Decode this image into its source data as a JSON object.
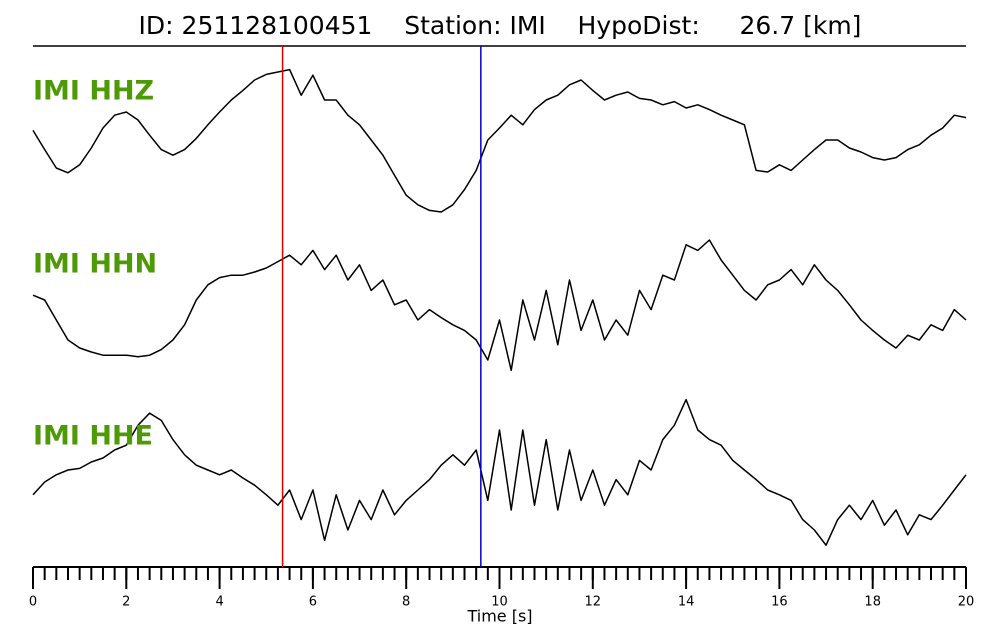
{
  "chart_data": {
    "type": "line",
    "title": "ID: 251128100451    Station: IMI    HypoDist:     26.7 [km]",
    "xlabel": "Time [s]",
    "xlim": [
      0,
      20
    ],
    "xticks": [
      0,
      2,
      4,
      6,
      8,
      10,
      12,
      14,
      16,
      18,
      20
    ],
    "xminorticks": [
      0,
      0.25,
      0.5,
      0.75,
      1,
      1.25,
      1.5,
      1.75,
      2,
      2.25,
      2.5,
      2.75,
      3,
      3.25,
      3.5,
      3.75,
      4,
      4.25,
      4.5,
      4.75,
      5,
      5.25,
      5.5,
      5.75,
      6,
      6.25,
      6.5,
      6.75,
      7,
      7.25,
      7.5,
      7.75,
      8,
      8.25,
      8.5,
      8.75,
      9,
      9.25,
      9.5,
      9.75,
      10,
      10.25,
      10.5,
      10.75,
      11,
      11.25,
      11.5,
      11.75,
      12,
      12.25,
      12.5,
      12.75,
      13,
      13.25,
      13.5,
      13.75,
      14,
      14.25,
      14.5,
      14.75,
      15,
      15.25,
      15.5,
      15.75,
      16,
      16.25,
      16.5,
      16.75,
      17,
      17.25,
      17.5,
      17.75,
      18,
      18.25,
      18.5,
      18.75,
      19,
      19.25,
      19.5,
      19.75,
      20
    ],
    "ylim": [
      -1,
      1
    ],
    "x": [
      0,
      0.25,
      0.5,
      0.75,
      1,
      1.25,
      1.5,
      1.75,
      2,
      2.25,
      2.5,
      2.75,
      3,
      3.25,
      3.5,
      3.75,
      4,
      4.25,
      4.5,
      4.75,
      5,
      5.25,
      5.5,
      5.75,
      6,
      6.25,
      6.5,
      6.75,
      7,
      7.25,
      7.5,
      7.75,
      8,
      8.25,
      8.5,
      8.75,
      9,
      9.25,
      9.5,
      9.75,
      10,
      10.25,
      10.5,
      10.75,
      11,
      11.25,
      11.5,
      11.75,
      12,
      12.25,
      12.5,
      12.75,
      13,
      13.25,
      13.5,
      13.75,
      14,
      14.25,
      14.5,
      14.75,
      15,
      15.25,
      15.5,
      15.75,
      16,
      16.25,
      16.5,
      16.75,
      17,
      17.25,
      17.5,
      17.75,
      18,
      18.25,
      18.5,
      18.75,
      19,
      19.25,
      19.5,
      19.75,
      20
    ],
    "series": [
      {
        "name": "IMI HHZ",
        "color": "#000000",
        "values": [
          0.12,
          -0.12,
          -0.35,
          -0.41,
          -0.31,
          -0.1,
          0.15,
          0.31,
          0.35,
          0.25,
          0.06,
          -0.12,
          -0.19,
          -0.12,
          0.02,
          0.19,
          0.35,
          0.5,
          0.62,
          0.75,
          0.82,
          0.85,
          0.88,
          0.56,
          0.81,
          0.5,
          0.5,
          0.31,
          0.19,
          0,
          -0.19,
          -0.44,
          -0.69,
          -0.81,
          -0.88,
          -0.9,
          -0.81,
          -0.62,
          -0.38,
          0,
          0.15,
          0.31,
          0.19,
          0.38,
          0.5,
          0.56,
          0.69,
          0.75,
          0.62,
          0.5,
          0.56,
          0.6,
          0.52,
          0.5,
          0.44,
          0.48,
          0.4,
          0.44,
          0.38,
          0.31,
          0.25,
          0.19,
          -0.38,
          -0.4,
          -0.31,
          -0.38,
          -0.25,
          -0.12,
          0,
          0,
          -0.1,
          -0.15,
          -0.22,
          -0.25,
          -0.22,
          -0.12,
          -0.06,
          0.06,
          0.15,
          0.31,
          0.28
        ]
      },
      {
        "name": "IMI HHN",
        "color": "#000000",
        "values": [
          0.06,
          0,
          -0.25,
          -0.5,
          -0.6,
          -0.65,
          -0.69,
          -0.69,
          -0.69,
          -0.71,
          -0.69,
          -0.62,
          -0.5,
          -0.31,
          0,
          0.19,
          0.28,
          0.31,
          0.31,
          0.35,
          0.4,
          0.48,
          0.56,
          0.44,
          0.62,
          0.38,
          0.56,
          0.25,
          0.44,
          0.12,
          0.25,
          -0.06,
          0,
          -0.25,
          -0.12,
          -0.22,
          -0.31,
          -0.38,
          -0.5,
          -0.75,
          -0.25,
          -0.88,
          0,
          -0.5,
          0.12,
          -0.56,
          0.25,
          -0.38,
          0,
          -0.5,
          -0.25,
          -0.44,
          0.12,
          -0.12,
          0.31,
          0.25,
          0.69,
          0.62,
          0.75,
          0.5,
          0.31,
          0.12,
          0,
          0.19,
          0.25,
          0.38,
          0.19,
          0.44,
          0.25,
          0.12,
          -0.06,
          -0.25,
          -0.38,
          -0.5,
          -0.6,
          -0.44,
          -0.5,
          -0.31,
          -0.38,
          -0.12,
          -0.25
        ]
      },
      {
        "name": "IMI HHE",
        "color": "#000000",
        "values": [
          -0.31,
          -0.15,
          -0.06,
          0,
          0.02,
          0.1,
          0.15,
          0.25,
          0.31,
          0.56,
          0.71,
          0.62,
          0.38,
          0.19,
          0.06,
          0,
          -0.06,
          0,
          -0.1,
          -0.19,
          -0.31,
          -0.44,
          -0.25,
          -0.62,
          -0.25,
          -0.88,
          -0.31,
          -0.75,
          -0.38,
          -0.62,
          -0.25,
          -0.56,
          -0.38,
          -0.25,
          -0.12,
          0.06,
          0.19,
          0.06,
          0.25,
          -0.38,
          0.5,
          -0.5,
          0.5,
          -0.44,
          0.38,
          -0.5,
          0.25,
          -0.38,
          0,
          -0.44,
          -0.12,
          -0.31,
          0.12,
          0,
          0.38,
          0.56,
          0.88,
          0.5,
          0.38,
          0.31,
          0.12,
          0,
          -0.12,
          -0.25,
          -0.31,
          -0.38,
          -0.62,
          -0.75,
          -0.94,
          -0.62,
          -0.44,
          -0.62,
          -0.38,
          -0.69,
          -0.5,
          -0.81,
          -0.56,
          -0.62,
          -0.44,
          -0.25,
          -0.06
        ]
      }
    ],
    "picks": [
      {
        "color": "#e00000",
        "x": 5.35
      },
      {
        "color": "#0000cc",
        "x": 9.6
      }
    ]
  }
}
